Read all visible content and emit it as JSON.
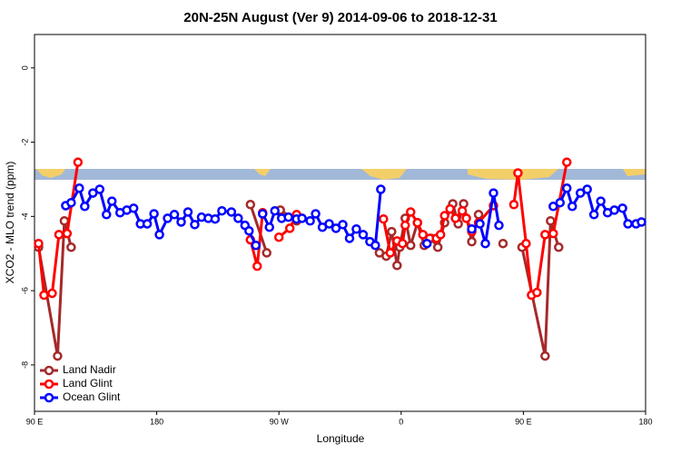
{
  "chart_data": {
    "type": "line",
    "title": "20N-25N August (Ver 9)   2014-09-06 to 2018-12-31",
    "x_label": "Longitude",
    "y_label": "XCO2 - MLO trend (ppm)",
    "xlim": [
      90,
      540
    ],
    "ylim": [
      -9.25,
      0.9
    ],
    "xticks": [
      {
        "value": 90,
        "label": "90 E"
      },
      180,
      {
        "value": 270,
        "label": "90 W"
      },
      {
        "value": 360,
        "label": "0"
      },
      {
        "value": 450,
        "label": "90 E"
      },
      {
        "value": 540,
        "label": "180"
      }
    ],
    "yticks": [
      0,
      -2,
      -4,
      -6,
      -8
    ],
    "legend": "bottom-left",
    "series": [
      {
        "name": "Land Nadir",
        "color": "#a52a2a",
        "x": [
          93,
          107,
          112,
          117,
          null,
          249,
          261,
          null,
          271,
          283,
          null,
          344,
          349,
          353,
          357,
          359,
          363,
          367,
          372,
          377,
          382,
          387,
          392,
          398,
          402,
          406,
          412,
          417,
          null,
          435,
          null,
          449,
          466,
          470,
          476
        ],
        "values": [
          -4.83,
          -7.76,
          -4.12,
          -4.83,
          null,
          -3.68,
          -4.98,
          null,
          -3.83,
          -4.12,
          null,
          -4.98,
          -5.07,
          -4.41,
          -5.32,
          -4.83,
          -4.05,
          -4.78,
          -4.17,
          -4.78,
          -4.59,
          -4.83,
          -4.17,
          -3.66,
          -4.2,
          -3.66,
          -4.68,
          -3.95,
          null,
          -4.73,
          null,
          -4.83,
          -7.76,
          -4.12,
          -4.83
        ]
      },
      {
        "name": "Land Glint",
        "color": "#ff0000",
        "x": [
          93,
          97,
          103,
          108,
          114,
          122,
          null,
          249,
          254,
          258,
          null,
          270,
          278,
          283,
          null,
          347,
          352,
          357,
          361,
          363,
          367,
          372,
          376,
          381,
          386,
          389,
          392,
          396,
          400,
          405,
          408,
          412,
          417,
          428,
          null,
          443,
          446,
          452,
          456,
          460,
          466,
          472,
          482
        ],
        "values": [
          -4.73,
          -6.12,
          -6.07,
          -4.49,
          -4.46,
          -2.54,
          null,
          -4.63,
          -5.34,
          -3.9,
          null,
          -4.56,
          -4.32,
          -3.95,
          null,
          -4.07,
          -4.98,
          -4.66,
          -4.73,
          -4.24,
          -3.88,
          -4.17,
          -4.49,
          -4.59,
          -4.59,
          -4.49,
          -3.98,
          -3.8,
          -4.05,
          -3.85,
          -4.05,
          -4.41,
          -4.17,
          -3.71,
          null,
          -3.68,
          -2.83,
          -4.73,
          -6.12,
          -6.05,
          -4.49,
          -4.46,
          -2.54
        ]
      },
      {
        "name": "Ocean Glint",
        "color": "#0000ff",
        "x": [
          113,
          117,
          123,
          127,
          133,
          138,
          143,
          147,
          153,
          158,
          163,
          168,
          173,
          178,
          182,
          188,
          193,
          198,
          203,
          208,
          213,
          218,
          223,
          228,
          235,
          240,
          245,
          248,
          253,
          null,
          258,
          263,
          267,
          272,
          277,
          283,
          287,
          293,
          297,
          302,
          307,
          312,
          317,
          322,
          327,
          332,
          337,
          341,
          345,
          null,
          379,
          null,
          412,
          418,
          422,
          428,
          432,
          null,
          472,
          477,
          482,
          486,
          492,
          497,
          502,
          507,
          512,
          517,
          523,
          527,
          533,
          537
        ],
        "values": [
          -3.71,
          -3.63,
          -3.24,
          -3.73,
          -3.37,
          -3.27,
          -3.95,
          -3.59,
          -3.9,
          -3.83,
          -3.78,
          -4.2,
          -4.2,
          -3.93,
          -4.49,
          -4.05,
          -3.95,
          -4.15,
          -3.88,
          -4.22,
          -4.02,
          -4.05,
          -4.07,
          -3.85,
          -3.88,
          -4.05,
          -4.24,
          -4.39,
          -4.78,
          null,
          -3.93,
          -4.29,
          -3.85,
          -4.05,
          -4.02,
          -4.07,
          -4.05,
          -4.12,
          -3.93,
          -4.29,
          -4.2,
          -4.32,
          -4.22,
          -4.59,
          -4.34,
          -4.49,
          -4.68,
          -4.78,
          -3.27,
          null,
          -4.73,
          null,
          -4.34,
          -4.2,
          -4.73,
          -3.37,
          -4.24,
          null,
          -3.73,
          -3.63,
          -3.24,
          -3.73,
          -3.37,
          -3.27,
          -3.95,
          -3.59,
          -3.9,
          -3.83,
          -3.78,
          -4.2,
          -4.2,
          -4.15
        ]
      }
    ]
  }
}
